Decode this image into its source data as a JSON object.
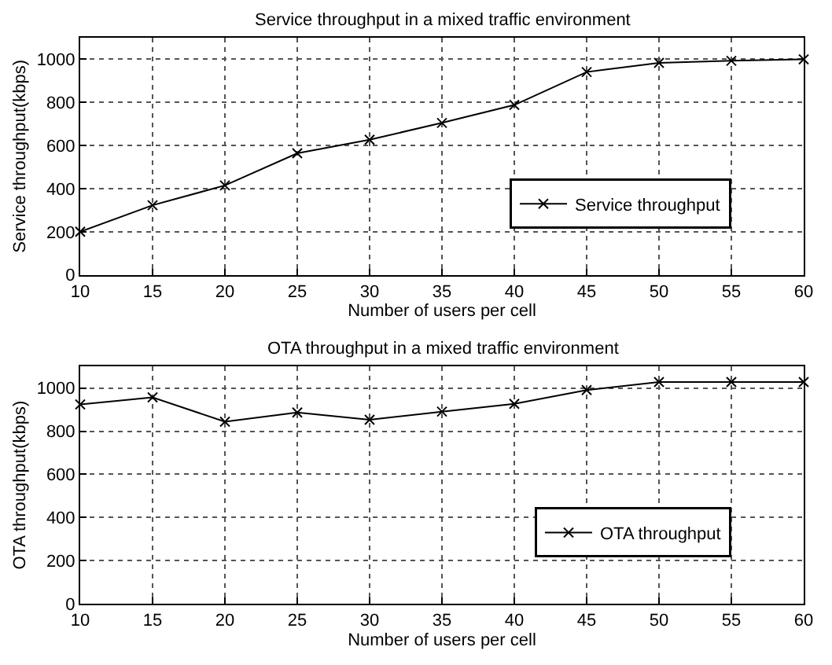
{
  "chart_data": [
    {
      "type": "line",
      "title": "Service throughput in a mixed traffic environment",
      "xlabel": "Number of users per cell",
      "ylabel": "Service throughput(kbps)",
      "x": [
        10,
        15,
        20,
        25,
        30,
        35,
        40,
        45,
        50,
        55,
        60
      ],
      "xlim": [
        10,
        60
      ],
      "xticks": [
        10,
        15,
        20,
        25,
        30,
        35,
        40,
        45,
        50,
        55,
        60
      ],
      "ylim": [
        0,
        1100
      ],
      "yticks": [
        0,
        200,
        400,
        600,
        800,
        1000
      ],
      "grid": true,
      "legend": "right",
      "marker": "cross",
      "line_style": "solid",
      "series": [
        {
          "name": "Service throughput",
          "color": "#000000",
          "values": [
            200,
            323,
            415,
            564,
            627,
            705,
            788,
            941,
            983,
            993,
            1000
          ]
        }
      ]
    },
    {
      "type": "line",
      "title": "OTA throughput in a mixed traffic environment",
      "xlabel": "Number of users per cell",
      "ylabel": "OTA throughput(kbps)",
      "x": [
        10,
        15,
        20,
        25,
        30,
        35,
        40,
        45,
        50,
        55,
        60
      ],
      "xlim": [
        10,
        60
      ],
      "xticks": [
        10,
        15,
        20,
        25,
        30,
        35,
        40,
        45,
        50,
        55,
        60
      ],
      "ylim": [
        0,
        1100
      ],
      "yticks": [
        0,
        200,
        400,
        600,
        800,
        1000
      ],
      "grid": true,
      "legend": "right",
      "marker": "cross",
      "line_style": "solid",
      "series": [
        {
          "name": "OTA throughput",
          "color": "#000000",
          "values": [
            924,
            957,
            844,
            887,
            853,
            891,
            927,
            991,
            1028,
            1028,
            1028
          ]
        }
      ]
    }
  ]
}
